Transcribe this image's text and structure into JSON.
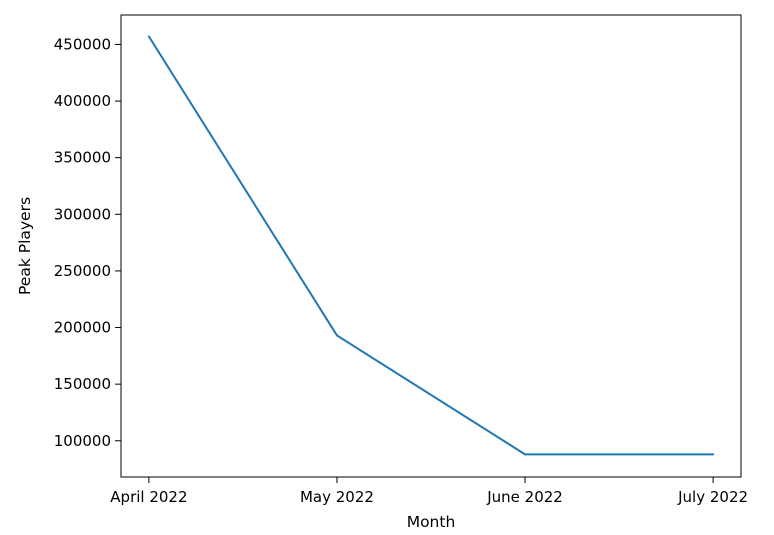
{
  "chart_data": {
    "type": "line",
    "title": "",
    "xlabel": "Month",
    "ylabel": "Peak Players",
    "categories": [
      "April 2022",
      "May 2022",
      "June 2022",
      "July 2022"
    ],
    "series": [
      {
        "values": [
          457000,
          193000,
          88000,
          88000
        ]
      }
    ],
    "ylim": [
      68000,
      476000
    ],
    "yticks": [
      100000,
      150000,
      200000,
      250000,
      300000,
      350000,
      400000,
      450000
    ],
    "ytick_labels": [
      "100000",
      "150000",
      "200000",
      "250000",
      "300000",
      "350000",
      "400000",
      "450000"
    ],
    "grid": false,
    "line_color": "#1f77b4"
  }
}
